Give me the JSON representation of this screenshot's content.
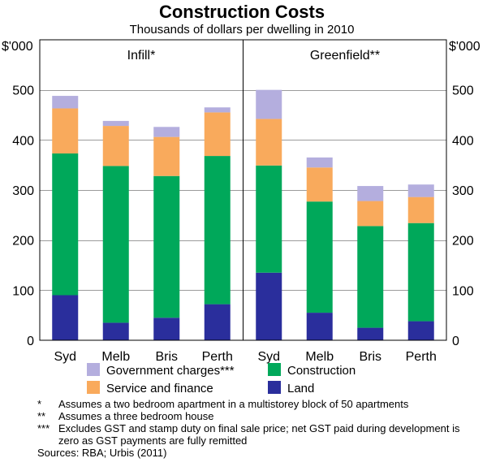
{
  "chart_data": {
    "type": "bar",
    "stacked": true,
    "title": "Construction Costs",
    "subtitle": "Thousands of dollars per dwelling in 2010",
    "y_unit_left": "$'000",
    "y_unit_right": "$'000",
    "ylim": [
      0,
      600
    ],
    "yticks": [
      0,
      100,
      200,
      300,
      400,
      500
    ],
    "grid": true,
    "panels": [
      {
        "name": "Infill*",
        "categories": [
          "Syd",
          "Melb",
          "Bris",
          "Perth"
        ],
        "series": [
          {
            "name": "Land",
            "color": "#2a2e9c",
            "values": [
              90,
              35,
              45,
              72
            ]
          },
          {
            "name": "Construction",
            "color": "#00a85a",
            "values": [
              283,
              313,
              283,
              296
            ]
          },
          {
            "name": "Service and finance",
            "color": "#f9aa5c",
            "values": [
              90,
              80,
              78,
              87
            ]
          },
          {
            "name": "Government charges***",
            "color": "#b4aede",
            "values": [
              25,
              10,
              20,
              10
            ]
          }
        ]
      },
      {
        "name": "Greenfield**",
        "categories": [
          "Syd",
          "Melb",
          "Bris",
          "Perth"
        ],
        "series": [
          {
            "name": "Land",
            "color": "#2a2e9c",
            "values": [
              135,
              55,
              25,
              38
            ]
          },
          {
            "name": "Construction",
            "color": "#00a85a",
            "values": [
              214,
              222,
              203,
              196
            ]
          },
          {
            "name": "Service and finance",
            "color": "#f9aa5c",
            "values": [
              93,
              68,
              50,
              52
            ]
          },
          {
            "name": "Government charges***",
            "color": "#b4aede",
            "values": [
              58,
              20,
              30,
              25
            ]
          }
        ]
      }
    ],
    "legend": [
      {
        "name": "Government charges***",
        "color": "#b4aede"
      },
      {
        "name": "Construction",
        "color": "#00a85a"
      },
      {
        "name": "Service and finance",
        "color": "#f9aa5c"
      },
      {
        "name": "Land",
        "color": "#2a2e9c"
      }
    ]
  },
  "notes": [
    {
      "mark": "*",
      "text": "Assumes a two bedroom apartment in a multistorey block of 50 apartments"
    },
    {
      "mark": "**",
      "text": "Assumes a three bedroom house"
    },
    {
      "mark": "***",
      "text": "Excludes GST and stamp duty on final sale price; net GST paid during development is zero as GST payments are fully remitted"
    }
  ],
  "source": "Sources: RBA; Urbis (2011)"
}
